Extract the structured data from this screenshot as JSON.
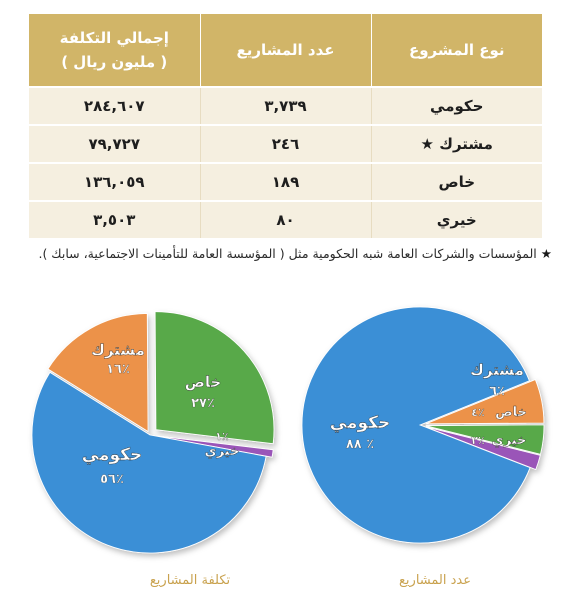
{
  "table": {
    "headers": [
      "نوع المشروع",
      "عدد المشاريع",
      "إجمالي التكلفة\n( مليون ريال )"
    ],
    "rows": [
      {
        "type": "حكومي",
        "count": "٣,٧٣٩",
        "cost": "٢٨٤,٦٠٧"
      },
      {
        "type": "مشترك",
        "count": "٢٤٦",
        "cost": "٧٩,٧٢٧"
      },
      {
        "type": "خاص",
        "count": "١٨٩",
        "cost": "١٣٦,٠٥٩"
      },
      {
        "type": "خيري",
        "count": "٨٠",
        "cost": "٣,٥٠٣"
      }
    ],
    "star_row": 1,
    "star_glyph": "★"
  },
  "note": {
    "star": "★",
    "text": "المؤسسات والشركات العامة شبه الحكومية مثل ( المؤسسة العامة للتأمينات الاجتماعية، سابك )."
  },
  "colors": {
    "header_bg": "#d1b568",
    "row_bg": "#f5efe0",
    "caption": "#c9a24e",
    "gov": "#3a8fd6",
    "joint": "#ec9248",
    "private": "#58a94a",
    "charity": "#9a55b8"
  },
  "chart_data": [
    {
      "type": "pie",
      "title": "تكلفة المشاريع",
      "slices": [
        {
          "label": "حكومي",
          "value": 56,
          "value_label": "٥٦٪",
          "color": "#3a8fd6"
        },
        {
          "label": "مشترك",
          "value": 16,
          "value_label": "١٦٪",
          "color": "#ec9248"
        },
        {
          "label": "خاص",
          "value": 27,
          "value_label": "٢٧٪",
          "color": "#58a94a"
        },
        {
          "label": "خيري",
          "value": 1,
          "value_label": "١٪",
          "color": "#9a55b8"
        }
      ]
    },
    {
      "type": "pie",
      "title": "عدد المشاريع",
      "slices": [
        {
          "label": "حكومي",
          "value": 88,
          "value_label": "٨٨ ٪",
          "color": "#3a8fd6"
        },
        {
          "label": "مشترك",
          "value": 6,
          "value_label": "٦٪",
          "color": "#ec9248"
        },
        {
          "label": "خاص",
          "value": 4,
          "value_label": "٤٪",
          "color": "#58a94a"
        },
        {
          "label": "خيري",
          "value": 2,
          "value_label": "٢٪",
          "color": "#9a55b8"
        }
      ]
    }
  ]
}
